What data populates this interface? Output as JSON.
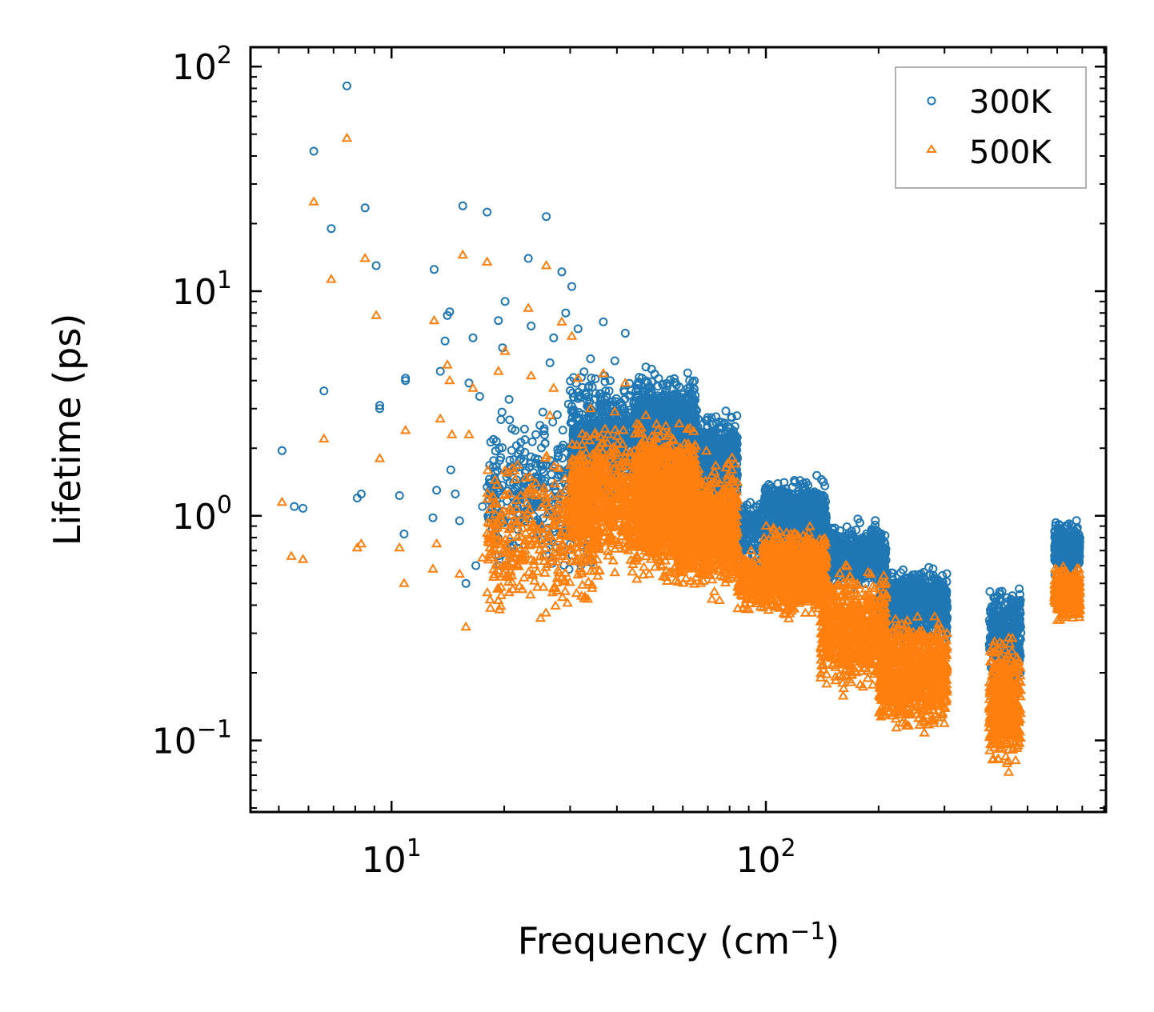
{
  "chart_data": {
    "type": "scatter",
    "xscale": "log",
    "yscale": "log",
    "xlabel": "Frequency (cm",
    "xlabel_sup": "−1",
    "xlabel_end": ")",
    "ylabel": "Lifetime (ps)",
    "xlim": [
      4.2,
      810
    ],
    "ylim": [
      0.048,
      122
    ],
    "x_ticks": [
      {
        "value": 10,
        "base": "10",
        "exp": "1"
      },
      {
        "value": 100,
        "base": "10",
        "exp": "2"
      }
    ],
    "y_ticks": [
      {
        "value": 0.1,
        "base": "10",
        "exp": "−1"
      },
      {
        "value": 1,
        "base": "10",
        "exp": "0"
      },
      {
        "value": 10,
        "base": "10",
        "exp": "1"
      },
      {
        "value": 100,
        "base": "10",
        "exp": "2"
      }
    ],
    "legend": {
      "position": "upper-right"
    },
    "series": [
      {
        "name": "300K",
        "color": "#1f77b4",
        "marker": "circle",
        "points": [
          [
            5.1,
            1.95
          ],
          [
            5.5,
            1.1
          ],
          [
            5.8,
            1.08
          ],
          [
            6.2,
            42
          ],
          [
            6.6,
            3.6
          ],
          [
            6.9,
            19
          ],
          [
            7.6,
            82
          ],
          [
            8.1,
            1.2
          ],
          [
            8.3,
            1.25
          ],
          [
            8.5,
            23.5
          ],
          [
            9.1,
            13
          ],
          [
            9.3,
            3.0
          ],
          [
            9.3,
            3.1
          ],
          [
            10.5,
            1.23
          ],
          [
            10.8,
            0.83
          ],
          [
            10.9,
            4.0
          ],
          [
            10.9,
            4.1
          ],
          [
            12.9,
            0.98
          ],
          [
            13.0,
            12.5
          ],
          [
            13.2,
            1.3
          ],
          [
            13.5,
            4.4
          ],
          [
            13.9,
            6.0
          ],
          [
            14.1,
            7.8
          ],
          [
            14.3,
            8.1
          ],
          [
            14.4,
            1.6
          ],
          [
            14.8,
            1.25
          ],
          [
            15.2,
            0.95
          ],
          [
            15.5,
            24
          ],
          [
            15.8,
            0.5
          ],
          [
            16.1,
            3.9
          ],
          [
            16.5,
            6.2
          ],
          [
            16.8,
            0.6
          ],
          [
            17.2,
            3.4
          ],
          [
            17.5,
            1.1
          ],
          [
            18.0,
            22.5
          ],
          [
            18.4,
            1.4
          ],
          [
            19.3,
            7.4
          ],
          [
            19.8,
            5.6
          ],
          [
            20.1,
            9.0
          ],
          [
            20.6,
            3.3
          ],
          [
            21.4,
            2.4
          ],
          [
            22.1,
            1.2
          ],
          [
            23.2,
            14
          ],
          [
            23.6,
            7
          ],
          [
            24.3,
            2.3
          ],
          [
            25.0,
            1.7
          ],
          [
            25.9,
            21.5
          ],
          [
            26.5,
            4.8
          ],
          [
            27.1,
            6.2
          ],
          [
            28.5,
            12.2
          ],
          [
            29.2,
            8.0
          ],
          [
            30.3,
            10.5
          ],
          [
            31.5,
            6.8
          ],
          [
            34.0,
            5.0
          ],
          [
            36.8,
            7.3
          ],
          [
            39.5,
            4.9
          ],
          [
            42.1,
            6.5
          ],
          [
            47.8,
            4.6
          ],
          [
            49.5,
            4.5
          ]
        ],
        "bands": [
          [
            18,
            36,
            0.5,
            3.5,
            380
          ],
          [
            30,
            47,
            1.0,
            4.8,
            650
          ],
          [
            45,
            65,
            1.2,
            4.6,
            1400
          ],
          [
            58,
            84,
            0.9,
            3.2,
            900
          ],
          [
            84,
            97,
            0.55,
            1.3,
            150
          ],
          [
            98,
            145,
            0.65,
            1.55,
            900
          ],
          [
            140,
            210,
            0.45,
            1.0,
            700
          ],
          [
            200,
            305,
            0.26,
            0.62,
            900
          ],
          [
            395,
            480,
            0.17,
            0.54,
            400
          ],
          [
            590,
            690,
            0.52,
            0.98,
            420
          ]
        ]
      },
      {
        "name": "500K",
        "color": "#ff7f0e",
        "marker": "triangle",
        "points": [
          [
            5.1,
            1.15
          ],
          [
            5.4,
            0.66
          ],
          [
            5.8,
            0.64
          ],
          [
            6.2,
            25
          ],
          [
            6.6,
            2.2
          ],
          [
            6.9,
            11.3
          ],
          [
            7.6,
            48
          ],
          [
            8.1,
            0.72
          ],
          [
            8.3,
            0.75
          ],
          [
            8.5,
            14
          ],
          [
            9.1,
            7.8
          ],
          [
            9.3,
            1.8
          ],
          [
            10.5,
            0.72
          ],
          [
            10.8,
            0.5
          ],
          [
            10.9,
            2.4
          ],
          [
            12.9,
            0.58
          ],
          [
            13.0,
            7.4
          ],
          [
            13.2,
            0.75
          ],
          [
            13.5,
            2.7
          ],
          [
            14.1,
            4.7
          ],
          [
            14.3,
            4.0
          ],
          [
            14.5,
            2.3
          ],
          [
            15.2,
            0.55
          ],
          [
            15.5,
            14.5
          ],
          [
            15.8,
            0.32
          ],
          [
            16.1,
            2.3
          ],
          [
            16.5,
            3.7
          ],
          [
            17.5,
            0.65
          ],
          [
            18.0,
            13.5
          ],
          [
            18.4,
            0.8
          ],
          [
            19.3,
            4.4
          ],
          [
            20.1,
            5.4
          ],
          [
            21.4,
            1.45
          ],
          [
            23.2,
            8.4
          ],
          [
            23.6,
            4.2
          ],
          [
            24.3,
            1.4
          ],
          [
            25.0,
            0.35
          ],
          [
            25.9,
            13.0
          ],
          [
            26.5,
            2.8
          ],
          [
            27.1,
            3.7
          ],
          [
            28.5,
            7.3
          ],
          [
            30.3,
            6.3
          ],
          [
            31.5,
            4.1
          ],
          [
            34.0,
            3.0
          ],
          [
            36.8,
            4.3
          ],
          [
            39.5,
            2.9
          ],
          [
            42.1,
            3.9
          ],
          [
            47.8,
            2.8
          ]
        ],
        "bands": [
          [
            18,
            36,
            0.3,
            2.1,
            380
          ],
          [
            30,
            47,
            0.5,
            2.9,
            650
          ],
          [
            45,
            65,
            0.45,
            2.9,
            1400
          ],
          [
            58,
            84,
            0.4,
            2.0,
            900
          ],
          [
            84,
            97,
            0.35,
            0.75,
            150
          ],
          [
            98,
            145,
            0.33,
            0.95,
            900
          ],
          [
            140,
            210,
            0.15,
            0.65,
            700
          ],
          [
            200,
            305,
            0.1,
            0.4,
            900
          ],
          [
            395,
            480,
            0.065,
            0.34,
            400
          ],
          [
            590,
            690,
            0.32,
            0.62,
            420
          ]
        ]
      }
    ]
  }
}
